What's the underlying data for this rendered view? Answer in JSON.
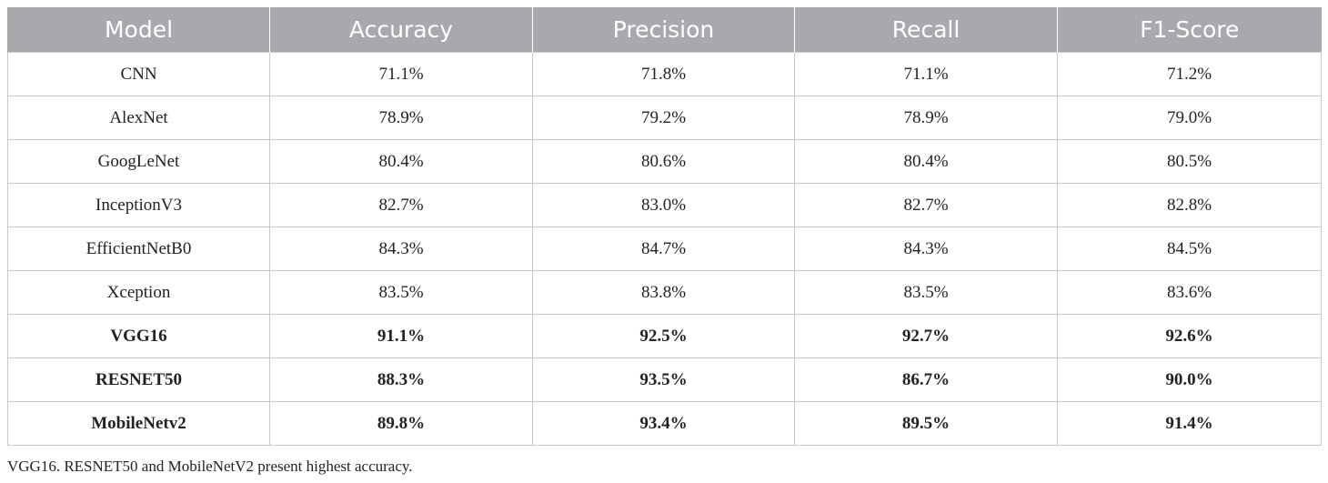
{
  "table": {
    "headers": [
      "Model",
      "Accuracy",
      "Precision",
      "Recall",
      "F1-Score"
    ],
    "rows": [
      {
        "cells": [
          "CNN",
          "71.1%",
          "71.8%",
          "71.1%",
          "71.2%"
        ],
        "bold": false
      },
      {
        "cells": [
          "AlexNet",
          "78.9%",
          "79.2%",
          "78.9%",
          "79.0%"
        ],
        "bold": false
      },
      {
        "cells": [
          "GoogLeNet",
          "80.4%",
          "80.6%",
          "80.4%",
          "80.5%"
        ],
        "bold": false
      },
      {
        "cells": [
          "InceptionV3",
          "82.7%",
          "83.0%",
          "82.7%",
          "82.8%"
        ],
        "bold": false
      },
      {
        "cells": [
          "EfficientNetB0",
          "84.3%",
          "84.7%",
          "84.3%",
          "84.5%"
        ],
        "bold": false
      },
      {
        "cells": [
          "Xception",
          "83.5%",
          "83.8%",
          "83.5%",
          "83.6%"
        ],
        "bold": false
      },
      {
        "cells": [
          "VGG16",
          "91.1%",
          "92.5%",
          "92.7%",
          "92.6%"
        ],
        "bold": true
      },
      {
        "cells": [
          "RESNET50",
          "88.3%",
          "93.5%",
          "86.7%",
          "90.0%"
        ],
        "bold": true
      },
      {
        "cells": [
          "MobileNetv2",
          "89.8%",
          "93.4%",
          "89.5%",
          "91.4%"
        ],
        "bold": true
      }
    ]
  },
  "caption": "VGG16. RESNET50 and MobileNetV2 present highest accuracy.",
  "colors": {
    "header_bg": "#a7a9ac",
    "header_text": "#ffffff",
    "grid": "#c9c9c9"
  }
}
